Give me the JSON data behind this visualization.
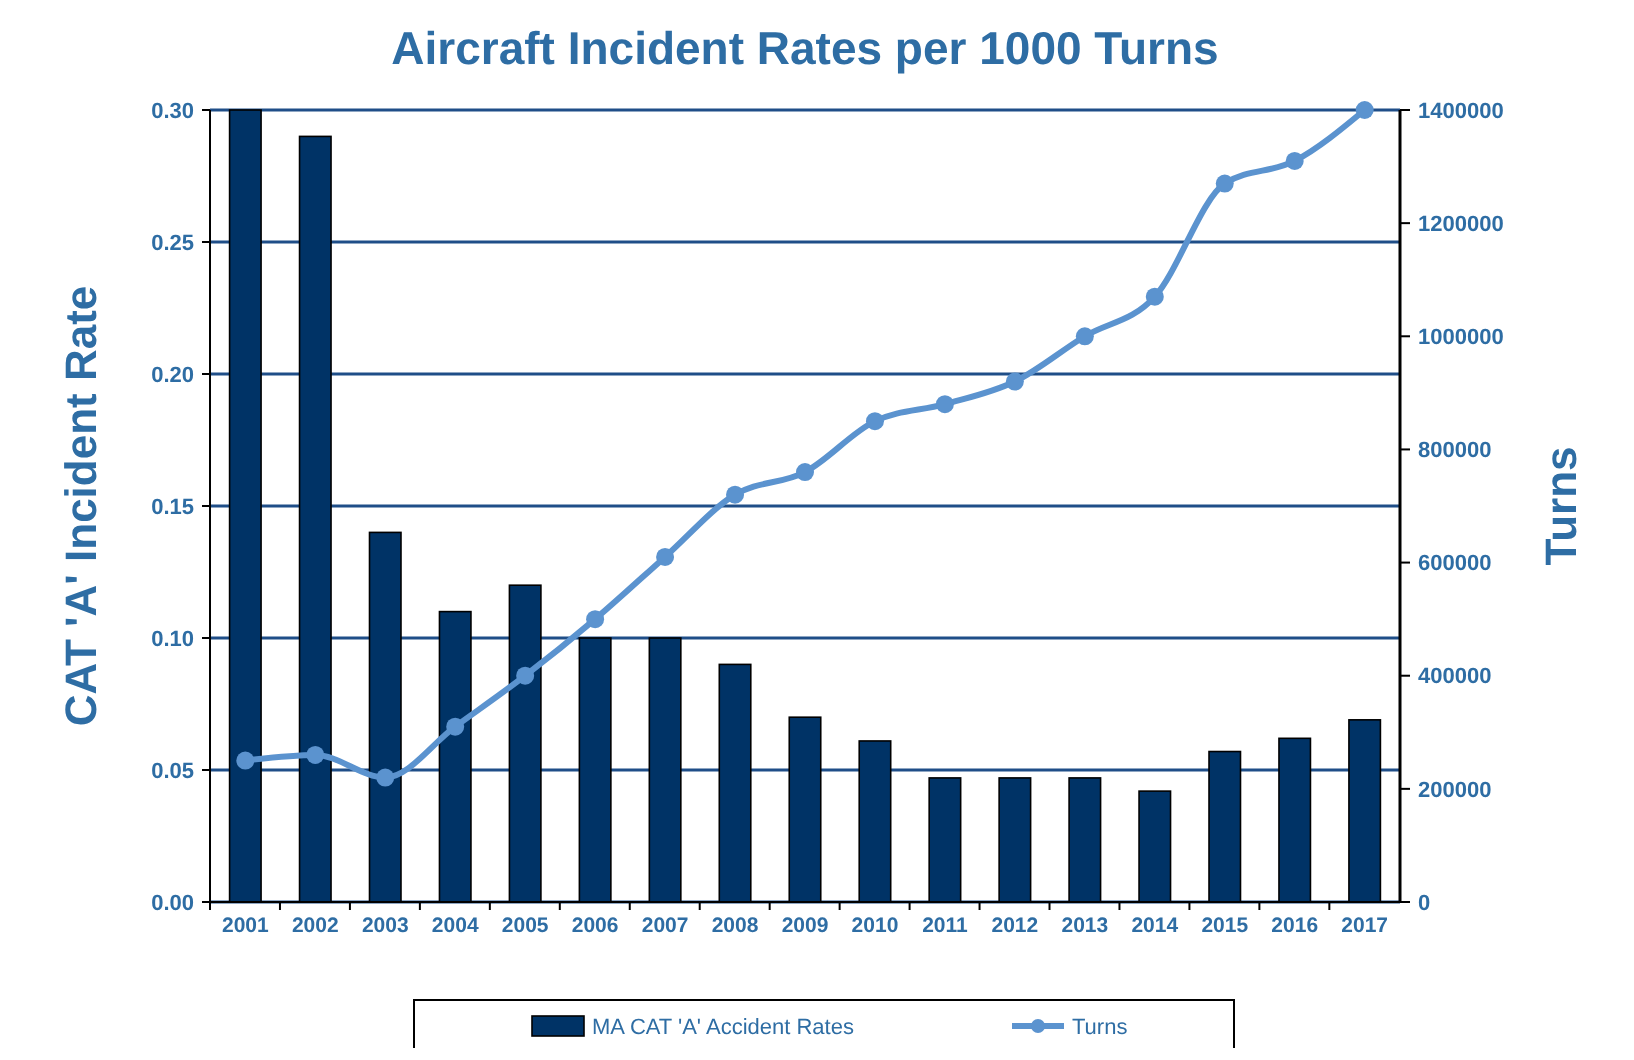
{
  "chart_data": {
    "type": "bar",
    "title": "Aircraft Incident Rates per 1000 Turns",
    "ylabel": "CAT 'A' Incident Rate",
    "y2label": "Turns",
    "categories": [
      "2001",
      "2002",
      "2003",
      "2004",
      "2005",
      "2006",
      "2007",
      "2008",
      "2009",
      "2010",
      "2011",
      "2012",
      "2013",
      "2014",
      "2015",
      "2016",
      "2017"
    ],
    "series": [
      {
        "name": "MA CAT 'A' Accident Rates",
        "color": "#003366",
        "values": [
          0.3,
          0.29,
          0.14,
          0.11,
          0.12,
          0.1,
          0.1,
          0.09,
          0.07,
          0.061,
          0.047,
          0.047,
          0.047,
          0.042,
          0.057,
          0.062,
          0.069
        ]
      },
      {
        "name": "Turns",
        "type": "line",
        "axis": "y2",
        "color": "#5b93cf",
        "marker": "circle",
        "values": [
          250000,
          260000,
          220000,
          310000,
          400000,
          500000,
          610000,
          720000,
          760000,
          850000,
          880000,
          920000,
          1000000,
          1070000,
          1270000,
          1310000,
          1400000
        ]
      }
    ],
    "ylim": [
      0,
      0.3
    ],
    "yticks": [
      {
        "value": 0,
        "label": "0.00"
      },
      {
        "value": 0.05,
        "label": "0.05"
      },
      {
        "value": 0.1,
        "label": "0.10"
      },
      {
        "value": 0.15,
        "label": "0.15"
      },
      {
        "value": 0.2,
        "label": "0.20"
      },
      {
        "value": 0.25,
        "label": "0.25"
      },
      {
        "value": 0.3,
        "label": "0.30"
      }
    ],
    "y2lim": [
      0,
      1400000
    ],
    "y2ticks": [
      0,
      200000,
      400000,
      600000,
      800000,
      1000000,
      1200000,
      1400000
    ],
    "grid": "y",
    "legend": "bottom"
  }
}
